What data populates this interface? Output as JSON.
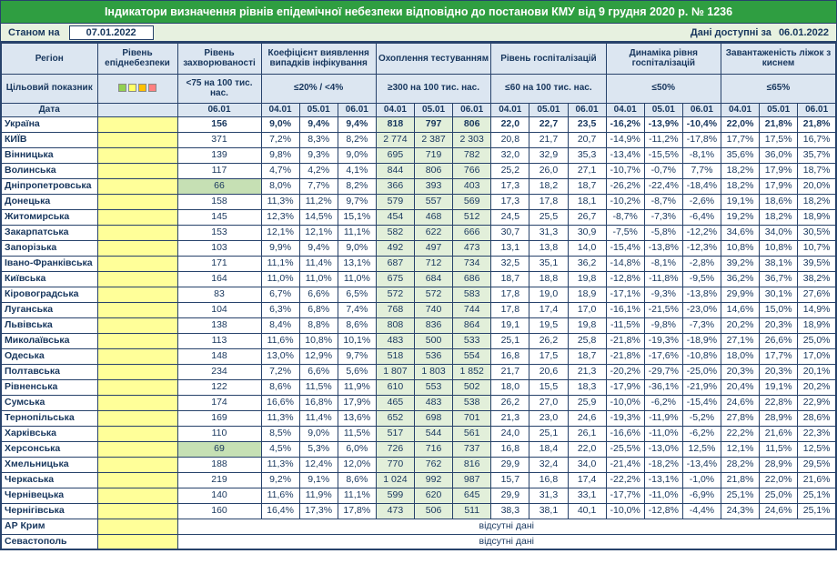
{
  "title": "Індикатори визначення рівнів епідемічної небезпеки відповідно до постанови КМУ від 9 грудня 2020 р. № 1236",
  "meta": {
    "as_of_label": "Станом на",
    "as_of_date": "07.01.2022",
    "available_label": "Дані доступні за",
    "available_date": "06.01.2022"
  },
  "colors": {
    "title_bg": "#2f9e41",
    "header_bg": "#dce6f1",
    "danger_col_bg": "#ffff99",
    "testing_bg": "#e2efda",
    "highlight_bg": "#c6e0b4",
    "border": "#27426b",
    "text": "#17365d"
  },
  "header": {
    "region": "Регіон",
    "danger": "Рівень епіднебезпеки",
    "incidence": "Рівень захворюваності",
    "target_label": "Цільовий показник",
    "incidence_target": "<75 на 100 тис. нас.",
    "date_label": "Дата",
    "incidence_date": "06.01",
    "dates": [
      "04.01",
      "05.01",
      "06.01"
    ],
    "danger_legend_colors": [
      "#92d050",
      "#ffff66",
      "#ffc000",
      "#ff8080"
    ],
    "groups": [
      {
        "label": "Коефіцієнт виявлення випадків інфікування",
        "target": "≤20% / <4%"
      },
      {
        "label": "Охоплення тестуванням",
        "target": "≥300 на 100 тис. нас."
      },
      {
        "label": "Рівень госпіталізацій",
        "target": "≤60 на 100 тис. нас."
      },
      {
        "label": "Динаміка рівня госпіталізацій",
        "target": "≤50%"
      },
      {
        "label": "Завантаженість ліжок з киснем",
        "target": "≤65%"
      }
    ]
  },
  "no_data_label": "відсутні дані",
  "rows": [
    {
      "name": "Україна",
      "bold": true,
      "incidence": "156",
      "values": [
        "9,0%",
        "9,4%",
        "9,4%",
        "818",
        "797",
        "806",
        "22,0",
        "22,7",
        "23,5",
        "-16,2%",
        "-13,9%",
        "-10,4%",
        "22,0%",
        "21,8%",
        "21,8%"
      ]
    },
    {
      "name": "КИЇВ",
      "incidence": "371",
      "values": [
        "7,2%",
        "8,3%",
        "8,2%",
        "2 774",
        "2 387",
        "2 303",
        "20,8",
        "21,7",
        "20,7",
        "-14,9%",
        "-11,2%",
        "-17,8%",
        "17,7%",
        "17,5%",
        "16,7%"
      ]
    },
    {
      "name": "Вінницька",
      "incidence": "139",
      "values": [
        "9,8%",
        "9,3%",
        "9,0%",
        "695",
        "719",
        "782",
        "32,0",
        "32,9",
        "35,3",
        "-13,4%",
        "-15,5%",
        "-8,1%",
        "35,6%",
        "36,0%",
        "35,7%"
      ]
    },
    {
      "name": "Волинська",
      "incidence": "117",
      "values": [
        "4,7%",
        "4,2%",
        "4,1%",
        "844",
        "806",
        "766",
        "25,2",
        "26,0",
        "27,1",
        "-10,7%",
        "-0,7%",
        "7,7%",
        "18,2%",
        "17,9%",
        "18,7%"
      ]
    },
    {
      "name": "Дніпропетровська",
      "incidence": "66",
      "incidence_hl": true,
      "values": [
        "8,0%",
        "7,7%",
        "8,2%",
        "366",
        "393",
        "403",
        "17,3",
        "18,2",
        "18,7",
        "-26,2%",
        "-22,4%",
        "-18,4%",
        "18,2%",
        "17,9%",
        "20,0%"
      ]
    },
    {
      "name": "Донецька",
      "incidence": "158",
      "values": [
        "11,3%",
        "11,2%",
        "9,7%",
        "579",
        "557",
        "569",
        "17,3",
        "17,8",
        "18,1",
        "-10,2%",
        "-8,7%",
        "-2,6%",
        "19,1%",
        "18,6%",
        "18,2%"
      ]
    },
    {
      "name": "Житомирська",
      "incidence": "145",
      "values": [
        "12,3%",
        "14,5%",
        "15,1%",
        "454",
        "468",
        "512",
        "24,5",
        "25,5",
        "26,7",
        "-8,7%",
        "-7,3%",
        "-6,4%",
        "19,2%",
        "18,2%",
        "18,9%"
      ]
    },
    {
      "name": "Закарпатська",
      "incidence": "153",
      "values": [
        "12,1%",
        "12,1%",
        "11,1%",
        "582",
        "622",
        "666",
        "30,7",
        "31,3",
        "30,9",
        "-7,5%",
        "-5,8%",
        "-12,2%",
        "34,6%",
        "34,0%",
        "30,5%"
      ]
    },
    {
      "name": "Запорізька",
      "incidence": "103",
      "values": [
        "9,9%",
        "9,4%",
        "9,0%",
        "492",
        "497",
        "473",
        "13,1",
        "13,8",
        "14,0",
        "-15,4%",
        "-13,8%",
        "-12,3%",
        "10,8%",
        "10,8%",
        "10,7%"
      ]
    },
    {
      "name": "Івано-Франківська",
      "incidence": "171",
      "values": [
        "11,1%",
        "11,4%",
        "13,1%",
        "687",
        "712",
        "734",
        "32,5",
        "35,1",
        "36,2",
        "-14,8%",
        "-8,1%",
        "-2,8%",
        "39,2%",
        "38,1%",
        "39,5%"
      ]
    },
    {
      "name": "Київська",
      "incidence": "164",
      "values": [
        "11,0%",
        "11,0%",
        "11,0%",
        "675",
        "684",
        "686",
        "18,7",
        "18,8",
        "19,8",
        "-12,8%",
        "-11,8%",
        "-9,5%",
        "36,2%",
        "36,7%",
        "38,2%"
      ]
    },
    {
      "name": "Кіровоградська",
      "incidence": "83",
      "values": [
        "6,7%",
        "6,6%",
        "6,5%",
        "572",
        "572",
        "583",
        "17,8",
        "19,0",
        "18,9",
        "-17,1%",
        "-9,3%",
        "-13,8%",
        "29,9%",
        "30,1%",
        "27,6%"
      ]
    },
    {
      "name": "Луганська",
      "incidence": "104",
      "values": [
        "6,3%",
        "6,8%",
        "7,4%",
        "768",
        "740",
        "744",
        "17,8",
        "17,4",
        "17,0",
        "-16,1%",
        "-21,5%",
        "-23,0%",
        "14,6%",
        "15,0%",
        "14,9%"
      ]
    },
    {
      "name": "Львівська",
      "incidence": "138",
      "values": [
        "8,4%",
        "8,8%",
        "8,6%",
        "808",
        "836",
        "864",
        "19,1",
        "19,5",
        "19,8",
        "-11,5%",
        "-9,8%",
        "-7,3%",
        "20,2%",
        "20,3%",
        "18,9%"
      ]
    },
    {
      "name": "Миколаївська",
      "incidence": "113",
      "values": [
        "11,6%",
        "10,8%",
        "10,1%",
        "483",
        "500",
        "533",
        "25,1",
        "26,2",
        "25,8",
        "-21,8%",
        "-19,3%",
        "-18,9%",
        "27,1%",
        "26,6%",
        "25,0%"
      ]
    },
    {
      "name": "Одеська",
      "incidence": "148",
      "values": [
        "13,0%",
        "12,9%",
        "9,7%",
        "518",
        "536",
        "554",
        "16,8",
        "17,5",
        "18,7",
        "-21,8%",
        "-17,6%",
        "-10,8%",
        "18,0%",
        "17,7%",
        "17,0%"
      ]
    },
    {
      "name": "Полтавська",
      "incidence": "234",
      "values": [
        "7,2%",
        "6,6%",
        "5,6%",
        "1 807",
        "1 803",
        "1 852",
        "21,7",
        "20,6",
        "21,3",
        "-20,2%",
        "-29,7%",
        "-25,0%",
        "20,3%",
        "20,3%",
        "20,1%"
      ]
    },
    {
      "name": "Рівненська",
      "incidence": "122",
      "values": [
        "8,6%",
        "11,5%",
        "11,9%",
        "610",
        "553",
        "502",
        "18,0",
        "15,5",
        "18,3",
        "-17,9%",
        "-36,1%",
        "-21,9%",
        "20,4%",
        "19,1%",
        "20,2%"
      ]
    },
    {
      "name": "Сумська",
      "incidence": "174",
      "values": [
        "16,6%",
        "16,8%",
        "17,9%",
        "465",
        "483",
        "538",
        "26,2",
        "27,0",
        "25,9",
        "-10,0%",
        "-6,2%",
        "-15,4%",
        "24,6%",
        "22,8%",
        "22,9%"
      ]
    },
    {
      "name": "Тернопільська",
      "incidence": "169",
      "values": [
        "11,3%",
        "11,4%",
        "13,6%",
        "652",
        "698",
        "701",
        "21,3",
        "23,0",
        "24,6",
        "-19,3%",
        "-11,9%",
        "-5,2%",
        "27,8%",
        "28,9%",
        "28,6%"
      ]
    },
    {
      "name": "Харківська",
      "incidence": "110",
      "values": [
        "8,5%",
        "9,0%",
        "11,5%",
        "517",
        "544",
        "561",
        "24,0",
        "25,1",
        "26,1",
        "-16,6%",
        "-11,0%",
        "-6,2%",
        "22,2%",
        "21,6%",
        "22,3%"
      ]
    },
    {
      "name": "Херсонська",
      "incidence": "69",
      "incidence_hl": true,
      "values": [
        "4,5%",
        "5,3%",
        "6,0%",
        "726",
        "716",
        "737",
        "16,8",
        "18,4",
        "22,0",
        "-25,5%",
        "-13,0%",
        "12,5%",
        "12,1%",
        "11,5%",
        "12,5%"
      ]
    },
    {
      "name": "Хмельницька",
      "incidence": "188",
      "values": [
        "11,3%",
        "12,4%",
        "12,0%",
        "770",
        "762",
        "816",
        "29,9",
        "32,4",
        "34,0",
        "-21,4%",
        "-18,2%",
        "-13,4%",
        "28,2%",
        "28,9%",
        "29,5%"
      ]
    },
    {
      "name": "Черкаська",
      "incidence": "219",
      "values": [
        "9,2%",
        "9,1%",
        "8,6%",
        "1 024",
        "992",
        "987",
        "15,7",
        "16,8",
        "17,4",
        "-22,2%",
        "-13,1%",
        "-1,0%",
        "21,8%",
        "22,0%",
        "21,6%"
      ]
    },
    {
      "name": "Чернівецька",
      "incidence": "140",
      "values": [
        "11,6%",
        "11,9%",
        "11,1%",
        "599",
        "620",
        "645",
        "29,9",
        "31,3",
        "33,1",
        "-17,7%",
        "-11,0%",
        "-6,9%",
        "25,1%",
        "25,0%",
        "25,1%"
      ]
    },
    {
      "name": "Чернігівська",
      "incidence": "160",
      "values": [
        "16,4%",
        "17,3%",
        "17,8%",
        "473",
        "506",
        "511",
        "38,3",
        "38,1",
        "40,1",
        "-10,0%",
        "-12,8%",
        "-4,4%",
        "24,3%",
        "24,6%",
        "25,1%"
      ]
    },
    {
      "name": "АР Крим",
      "no_data": true
    },
    {
      "name": "Севастополь",
      "no_data": true
    }
  ]
}
